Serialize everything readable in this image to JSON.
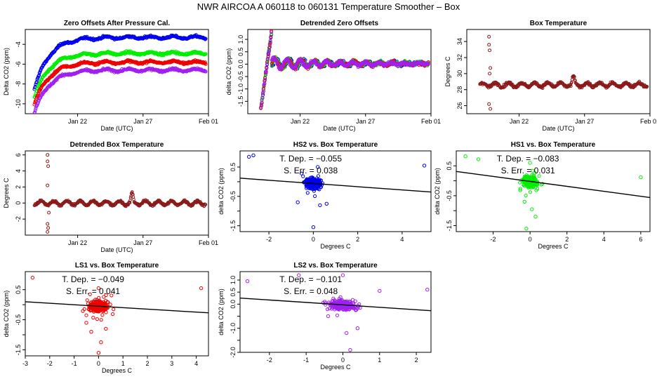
{
  "page_title": "NWR   AIRCOA A   060118 to 060131   Temperature Smoother – Box",
  "colors": {
    "blue": "#0000ee",
    "green": "#00ee00",
    "red": "#ee0000",
    "purple": "#a020f0",
    "brown": "#8b1a1a",
    "black": "#000000"
  },
  "chart_data": [
    {
      "id": "zero_offsets",
      "type": "scatter",
      "title": "Zero Offsets After Pressure Cal.",
      "xlabel": "Date (UTC)",
      "ylabel": "Delta CO2 (ppm)",
      "xticks": [
        "Jan 22",
        "Jan 27",
        "Feb 01"
      ],
      "xtick_days": [
        22,
        27,
        32
      ],
      "xlim": [
        18,
        32
      ],
      "ylim": [
        -11,
        -2.5
      ],
      "yticks": [
        -10,
        -8,
        -6,
        -4
      ],
      "ytick_labels": [
        "-10",
        "-8",
        "-6",
        "-4"
      ],
      "series": [
        {
          "name": "HS2",
          "color": "blue",
          "start": -8.6,
          "plateau": -3.3,
          "drift": 0.0
        },
        {
          "name": "HS1",
          "color": "green",
          "start": -9.4,
          "plateau": -4.9,
          "drift": 0.0
        },
        {
          "name": "LS1",
          "color": "red",
          "start": -10.1,
          "plateau": -5.8,
          "drift": 0.0
        },
        {
          "name": "LS2",
          "color": "purple",
          "start": -10.9,
          "plateau": -6.6,
          "drift": 0.0
        }
      ]
    },
    {
      "id": "detrended_zero",
      "type": "scatter",
      "title": "Detrended Zero Offsets",
      "xlabel": "Date (UTC)",
      "ylabel": "delta CO2 (ppm)",
      "xticks": [
        "Jan 22",
        "Jan 27",
        "Feb 01"
      ],
      "xtick_days": [
        22,
        27,
        32
      ],
      "xlim": [
        18,
        32
      ],
      "ylim": [
        -2.0,
        1.4
      ],
      "yticks": [
        -1.5,
        -1.0,
        -0.5,
        0.0,
        0.5,
        1.0
      ],
      "ytick_labels": [
        "-1.5",
        "-1.0",
        "-0.5",
        "0.0",
        "0.5",
        "1.0"
      ]
    },
    {
      "id": "box_temp",
      "type": "scatter",
      "title": "Box Temperature",
      "xlabel": "Date (UTC)",
      "ylabel": "Degrees C",
      "xticks": [
        "Jan 22",
        "Jan 27",
        "Feb 01"
      ],
      "xtick_days": [
        22,
        27,
        32
      ],
      "xlim": [
        18,
        32
      ],
      "ylim": [
        25,
        35.5
      ],
      "yticks": [
        26,
        28,
        30,
        32,
        34
      ],
      "ytick_labels": [
        "26",
        "28",
        "30",
        "32",
        "34"
      ],
      "baseline": 28.6
    },
    {
      "id": "detrended_box_temp",
      "type": "scatter",
      "title": "Detrended Box Temperature",
      "xlabel": "Date (UTC)",
      "ylabel": "Degrees C",
      "xticks": [
        "Jan 22",
        "Jan 27",
        "Feb 01"
      ],
      "xtick_days": [
        22,
        27,
        32
      ],
      "xlim": [
        18,
        32
      ],
      "ylim": [
        -4,
        6.5
      ],
      "yticks": [
        -2,
        0,
        2,
        4,
        6
      ],
      "ytick_labels": [
        "-2",
        "0",
        "2",
        "4",
        "6"
      ]
    },
    {
      "id": "hs2_vs_box",
      "type": "scatter",
      "title": "HS2 vs. Box Temperature",
      "xlabel": "Degrees C",
      "ylabel": "delta CO2 (ppm)",
      "color": "blue",
      "xlim": [
        -3.3,
        5.3
      ],
      "xticks": [
        -2,
        0,
        2,
        4
      ],
      "xtick_labels": [
        "-2",
        "0",
        "2",
        "4"
      ],
      "ylim": [
        -1.7,
        1.05
      ],
      "yticks": [
        -1.5,
        -1.0,
        -0.5,
        0.0,
        0.5
      ],
      "ytick_labels": [
        "-1.5",
        "",
        "-0.5",
        "",
        "0.5"
      ],
      "slope": -0.055,
      "intercept": -0.06,
      "tdep_label": "T. Dep. =  −0.055",
      "serr_label": "S. Err. =  0.038",
      "outliers": [
        [
          -2.9,
          0.85
        ],
        [
          -2.7,
          0.9
        ],
        [
          5.0,
          0.55
        ],
        [
          0.0,
          -1.55
        ],
        [
          0.3,
          -0.8
        ],
        [
          0.6,
          -0.75
        ],
        [
          -0.7,
          -0.7
        ],
        [
          0.2,
          0.5
        ]
      ]
    },
    {
      "id": "hs1_vs_box",
      "type": "scatter",
      "title": "HS1 vs. Box Temperature",
      "xlabel": "Degrees C",
      "ylabel": "delta CO2 (ppm)",
      "color": "green",
      "xlim": [
        -4.0,
        6.5
      ],
      "xticks": [
        -2,
        0,
        2,
        4,
        6
      ],
      "xtick_labels": [
        "-2",
        "0",
        "2",
        "4",
        "6"
      ],
      "ylim": [
        -1.7,
        1.0
      ],
      "yticks": [
        -1.5,
        -1.0,
        -0.5,
        0.0,
        0.5
      ],
      "ytick_labels": [
        "-1.5",
        "",
        "-0.5",
        "",
        "0.5"
      ],
      "slope": -0.083,
      "intercept": -0.02,
      "tdep_label": "T. Dep. =  −0.083",
      "serr_label": "S. Err. =  0.031",
      "outliers": [
        [
          -3.5,
          0.82
        ],
        [
          -2.8,
          0.72
        ],
        [
          6.0,
          0.12
        ],
        [
          -0.2,
          -1.6
        ],
        [
          0.3,
          -1.2
        ],
        [
          0.1,
          -0.95
        ],
        [
          -0.3,
          -0.7
        ],
        [
          0.0,
          0.6
        ]
      ]
    },
    {
      "id": "ls1_vs_box",
      "type": "scatter",
      "title": "LS1 vs. Box Temperature",
      "xlabel": "Degrees C",
      "ylabel": "delta CO2 (ppm)",
      "color": "red",
      "xlim": [
        -3.0,
        4.5
      ],
      "xticks": [
        -3,
        -2,
        -1,
        0,
        1,
        2,
        3,
        4
      ],
      "xtick_labels": [
        "-3",
        "-2",
        "-1",
        "0",
        "1",
        "2",
        "3",
        "4"
      ],
      "ylim": [
        -1.7,
        1.1
      ],
      "yticks": [
        -1.5,
        -1.0,
        -0.5,
        0.0,
        0.5
      ],
      "ytick_labels": [
        "-1.5",
        "",
        "-0.5",
        "",
        "0.5"
      ],
      "slope": -0.049,
      "intercept": -0.05,
      "tdep_label": "T. Dep. =  −0.049",
      "serr_label": "S. Err. =  0.041",
      "outliers": [
        [
          -2.7,
          0.9
        ],
        [
          4.2,
          0.55
        ],
        [
          0.0,
          -1.6
        ],
        [
          0.1,
          -1.25
        ],
        [
          -0.3,
          -0.9
        ],
        [
          0.3,
          -0.8
        ],
        [
          -0.5,
          -0.6
        ],
        [
          0.0,
          0.55
        ]
      ]
    },
    {
      "id": "ls2_vs_box",
      "type": "scatter",
      "title": "LS2 vs. Box Temperature",
      "xlabel": "Degrees C",
      "ylabel": "delta CO2 (ppm)",
      "color": "purple",
      "xlim": [
        -2.8,
        2.4
      ],
      "xticks": [
        -2,
        -1,
        0,
        1,
        2
      ],
      "xtick_labels": [
        "-2",
        "-1",
        "0",
        "1",
        "2"
      ],
      "ylim": [
        -2.0,
        1.35
      ],
      "yticks": [
        -2.0,
        -1.5,
        -1.0,
        -0.5,
        0.0,
        0.5,
        1.0
      ],
      "ytick_labels": [
        "-2.0",
        "",
        "-1.0",
        "",
        "0.0",
        "0.5",
        "1.0"
      ],
      "slope": -0.101,
      "intercept": -0.03,
      "tdep_label": "T. Dep. =  −0.101",
      "serr_label": "S. Err. =  0.048",
      "outliers": [
        [
          -2.6,
          0.95
        ],
        [
          -1.2,
          1.2
        ],
        [
          2.3,
          0.6
        ],
        [
          0.2,
          -1.9
        ],
        [
          0.1,
          -1.2
        ],
        [
          0.4,
          -1.0
        ],
        [
          -0.4,
          -0.5
        ],
        [
          1.0,
          0.55
        ],
        [
          0.0,
          1.2
        ]
      ]
    }
  ]
}
